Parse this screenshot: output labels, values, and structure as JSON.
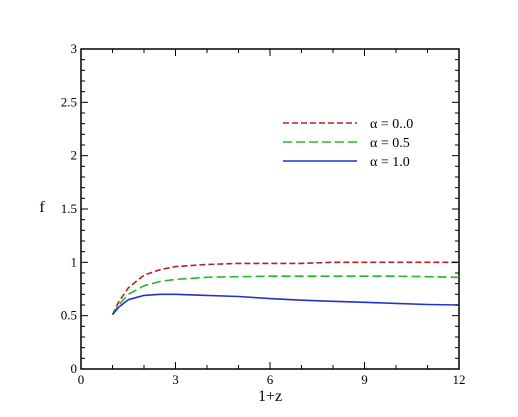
{
  "chart_data": {
    "type": "line",
    "title": "",
    "xlabel": "1+z",
    "ylabel": "f",
    "xlim": [
      0,
      12
    ],
    "ylim": [
      0,
      3
    ],
    "xticks": [
      0,
      3,
      6,
      9,
      12
    ],
    "yticks": [
      0,
      0.5,
      1,
      1.5,
      2,
      2.5,
      3
    ],
    "xtick_labels": [
      "0",
      "3",
      "6",
      "9",
      "12"
    ],
    "ytick_labels": [
      "0",
      "0.5",
      "1",
      "1.5",
      "2",
      "2.5",
      "3"
    ],
    "grid": false,
    "legend": "upper-right",
    "series": [
      {
        "name": "α = 0..0",
        "color": "#b22222",
        "style": "dashed",
        "x": [
          1.0,
          1.2,
          1.5,
          2.0,
          2.5,
          3.0,
          4.0,
          5.0,
          6.0,
          7.0,
          8.0,
          9.0,
          10.0,
          11.0,
          12.0
        ],
        "y": [
          0.51,
          0.63,
          0.76,
          0.88,
          0.93,
          0.96,
          0.98,
          0.99,
          0.99,
          0.99,
          1.0,
          1.0,
          1.0,
          1.0,
          1.0
        ]
      },
      {
        "name": "α = 0.5",
        "color": "#22bb22",
        "style": "dashed",
        "x": [
          1.0,
          1.2,
          1.5,
          2.0,
          2.5,
          3.0,
          4.0,
          5.0,
          6.0,
          7.0,
          8.0,
          9.0,
          10.0,
          11.0,
          12.0
        ],
        "y": [
          0.51,
          0.6,
          0.7,
          0.78,
          0.82,
          0.84,
          0.86,
          0.865,
          0.87,
          0.87,
          0.87,
          0.87,
          0.87,
          0.865,
          0.86
        ]
      },
      {
        "name": "α = 1.0",
        "color": "#2233cc",
        "style": "solid",
        "x": [
          1.0,
          1.2,
          1.5,
          2.0,
          2.5,
          3.0,
          4.0,
          5.0,
          6.0,
          7.0,
          8.0,
          9.0,
          10.0,
          11.0,
          12.0
        ],
        "y": [
          0.51,
          0.58,
          0.65,
          0.69,
          0.7,
          0.7,
          0.69,
          0.68,
          0.66,
          0.645,
          0.635,
          0.625,
          0.615,
          0.605,
          0.6
        ]
      }
    ]
  }
}
